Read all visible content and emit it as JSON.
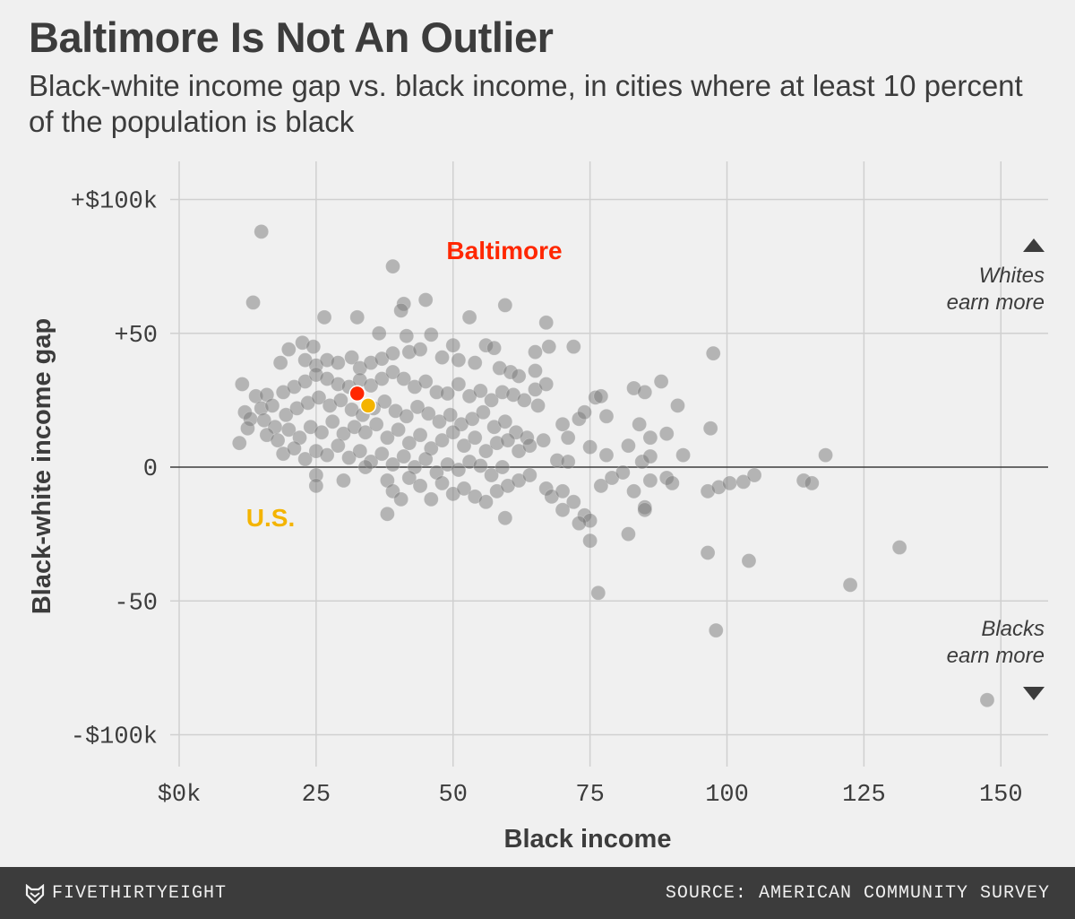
{
  "header": {
    "title": "Baltimore Is Not An Outlier",
    "subtitle": "Black-white income gap vs. black income, in cities where at least 10 percent of the population is black"
  },
  "footer": {
    "brand": "FIVETHIRTYEIGHT",
    "brand_icon": "fivethirtyeight-fox-icon",
    "source": "SOURCE: AMERICAN COMMUNITY SURVEY"
  },
  "colors": {
    "background": "#f0f0f0",
    "point": "#777777",
    "baltimore": "#ff2700",
    "us": "#f4b400",
    "text": "#3c3c3c",
    "grid": "#d0d0d0"
  },
  "chart_data": {
    "type": "scatter",
    "title": "Baltimore Is Not An Outlier",
    "subtitle": "Black-white income gap vs. black income, in cities where at least 10 percent of the population is black",
    "xlabel": "Black income",
    "ylabel": "Black-white income gap",
    "xlim": [
      0,
      160
    ],
    "ylim": [
      -110,
      115
    ],
    "x_ticks": [
      0,
      25,
      50,
      75,
      100,
      125,
      150
    ],
    "x_tick_labels": [
      "$0k",
      "25",
      "50",
      "75",
      "100",
      "125",
      "150"
    ],
    "y_ticks": [
      100,
      50,
      0,
      -50,
      -100
    ],
    "y_tick_labels": [
      "+$100k",
      "+50",
      "0",
      "-50",
      "-$100k"
    ],
    "grid": true,
    "annotations": {
      "baltimore_label": "Baltimore",
      "us_label": "U.S.",
      "whites_label": "Whites\nearn more",
      "blacks_label": "Blacks\nearn more"
    },
    "highlights": [
      {
        "name": "Baltimore",
        "x": 32.5,
        "y": 27.5
      },
      {
        "name": "U.S.",
        "x": 34.5,
        "y": 23
      }
    ],
    "points": [
      [
        15,
        88
      ],
      [
        13.5,
        61.5
      ],
      [
        39,
        75
      ],
      [
        45,
        62.5
      ],
      [
        41,
        61
      ],
      [
        40.5,
        58.5
      ],
      [
        26.5,
        56
      ],
      [
        32.5,
        56
      ],
      [
        53,
        56
      ],
      [
        59.5,
        60.5
      ],
      [
        67,
        54
      ],
      [
        36.5,
        50
      ],
      [
        41.5,
        49
      ],
      [
        46,
        49.5
      ],
      [
        50,
        45.5
      ],
      [
        56,
        45.5
      ],
      [
        57.5,
        44.5
      ],
      [
        65,
        43
      ],
      [
        67.5,
        45
      ],
      [
        72,
        45
      ],
      [
        97.5,
        42.5
      ],
      [
        20,
        44
      ],
      [
        22.5,
        46.5
      ],
      [
        24.5,
        45
      ],
      [
        18.5,
        39
      ],
      [
        23,
        40
      ],
      [
        25,
        38
      ],
      [
        27,
        40
      ],
      [
        29,
        39
      ],
      [
        31.5,
        41
      ],
      [
        33,
        37
      ],
      [
        35,
        39
      ],
      [
        37,
        40.5
      ],
      [
        39,
        42.5
      ],
      [
        42,
        43
      ],
      [
        44,
        44
      ],
      [
        48,
        41
      ],
      [
        51,
        40
      ],
      [
        54,
        39
      ],
      [
        58.5,
        37
      ],
      [
        60.5,
        35.5
      ],
      [
        65,
        36
      ],
      [
        62,
        34
      ],
      [
        11.5,
        31
      ],
      [
        14,
        26.5
      ],
      [
        16,
        27
      ],
      [
        12,
        20.5
      ],
      [
        13,
        18
      ],
      [
        11,
        9
      ],
      [
        12.5,
        14.5
      ],
      [
        15,
        22
      ],
      [
        17,
        23
      ],
      [
        19,
        28
      ],
      [
        21,
        30
      ],
      [
        23,
        32
      ],
      [
        25,
        34.5
      ],
      [
        27,
        33
      ],
      [
        29,
        31
      ],
      [
        31,
        30
      ],
      [
        33,
        32.5
      ],
      [
        35,
        30.5
      ],
      [
        37,
        33
      ],
      [
        39,
        35.5
      ],
      [
        41,
        33
      ],
      [
        43,
        30
      ],
      [
        45,
        32
      ],
      [
        47,
        28
      ],
      [
        49,
        27.5
      ],
      [
        51,
        31
      ],
      [
        53,
        26.5
      ],
      [
        55,
        28.5
      ],
      [
        57,
        25
      ],
      [
        59,
        28
      ],
      [
        61,
        27
      ],
      [
        63,
        25
      ],
      [
        65,
        29
      ],
      [
        67,
        31
      ],
      [
        76,
        26
      ],
      [
        77,
        26.5
      ],
      [
        83,
        29.5
      ],
      [
        85,
        28
      ],
      [
        88,
        32
      ],
      [
        91,
        23
      ],
      [
        97,
        14.5
      ],
      [
        15.5,
        17.5
      ],
      [
        17.5,
        15
      ],
      [
        19.5,
        19.5
      ],
      [
        21.5,
        22
      ],
      [
        23.5,
        24
      ],
      [
        25.5,
        26
      ],
      [
        27.5,
        23
      ],
      [
        29.5,
        25
      ],
      [
        31.5,
        21.5
      ],
      [
        33.5,
        19.5
      ],
      [
        35.5,
        22
      ],
      [
        37.5,
        24.5
      ],
      [
        39.5,
        21
      ],
      [
        41.5,
        19
      ],
      [
        43.5,
        22.5
      ],
      [
        45.5,
        20
      ],
      [
        47.5,
        17
      ],
      [
        49.5,
        19.5
      ],
      [
        51.5,
        16
      ],
      [
        53.5,
        18
      ],
      [
        55.5,
        20.5
      ],
      [
        57.5,
        15
      ],
      [
        59.5,
        17
      ],
      [
        61.5,
        13
      ],
      [
        63.5,
        11
      ],
      [
        65.5,
        23
      ],
      [
        66.5,
        10
      ],
      [
        70,
        16
      ],
      [
        71,
        11
      ],
      [
        73,
        18
      ],
      [
        74,
        20.5
      ],
      [
        78,
        19
      ],
      [
        84,
        16
      ],
      [
        86,
        11
      ],
      [
        89,
        12.5
      ],
      [
        92,
        4.5
      ],
      [
        118,
        4.5
      ],
      [
        16,
        12
      ],
      [
        18,
        10
      ],
      [
        20,
        14
      ],
      [
        22,
        11
      ],
      [
        24,
        15
      ],
      [
        26,
        13
      ],
      [
        28,
        17
      ],
      [
        30,
        12.5
      ],
      [
        32,
        15
      ],
      [
        34,
        13
      ],
      [
        36,
        16
      ],
      [
        38,
        11
      ],
      [
        40,
        14
      ],
      [
        42,
        9
      ],
      [
        44,
        12
      ],
      [
        46,
        7
      ],
      [
        48,
        10
      ],
      [
        50,
        13
      ],
      [
        52,
        8
      ],
      [
        54,
        11
      ],
      [
        56,
        6
      ],
      [
        58,
        9
      ],
      [
        60,
        10
      ],
      [
        62,
        6
      ],
      [
        64,
        8
      ],
      [
        69,
        2.5
      ],
      [
        71,
        2
      ],
      [
        75,
        7.5
      ],
      [
        78,
        4.5
      ],
      [
        82,
        8
      ],
      [
        84.5,
        2
      ],
      [
        86,
        4
      ],
      [
        19,
        5
      ],
      [
        21,
        7
      ],
      [
        23,
        3
      ],
      [
        25,
        6
      ],
      [
        27,
        4.5
      ],
      [
        29,
        8
      ],
      [
        31,
        3.5
      ],
      [
        33,
        6
      ],
      [
        35,
        2
      ],
      [
        37,
        5
      ],
      [
        39,
        1
      ],
      [
        41,
        4
      ],
      [
        43,
        0
      ],
      [
        45,
        3
      ],
      [
        47,
        -2
      ],
      [
        49,
        1
      ],
      [
        51,
        -1
      ],
      [
        53,
        2
      ],
      [
        55,
        0.5
      ],
      [
        57,
        -3
      ],
      [
        59,
        0
      ],
      [
        34,
        0
      ],
      [
        25,
        -3
      ],
      [
        25,
        -7
      ],
      [
        30,
        -5
      ],
      [
        38,
        -5
      ],
      [
        39,
        -9
      ],
      [
        42,
        -4
      ],
      [
        44,
        -7
      ],
      [
        46,
        -12
      ],
      [
        48,
        -6
      ],
      [
        50,
        -10
      ],
      [
        52,
        -8
      ],
      [
        54,
        -11
      ],
      [
        56,
        -13
      ],
      [
        58,
        -9
      ],
      [
        60,
        -7
      ],
      [
        62,
        -5
      ],
      [
        64,
        -3
      ],
      [
        67,
        -8
      ],
      [
        68,
        -11
      ],
      [
        70,
        -9
      ],
      [
        72,
        -13
      ],
      [
        74,
        -18
      ],
      [
        75,
        -20
      ],
      [
        77,
        -7
      ],
      [
        79,
        -4
      ],
      [
        81,
        -2
      ],
      [
        83,
        -9
      ],
      [
        85,
        -15
      ],
      [
        85,
        -16
      ],
      [
        86,
        -5
      ],
      [
        89,
        -4
      ],
      [
        90,
        -6
      ],
      [
        96.5,
        -9
      ],
      [
        98.5,
        -7.5
      ],
      [
        100.5,
        -6
      ],
      [
        103,
        -5.5
      ],
      [
        105,
        -3
      ],
      [
        114,
        -5
      ],
      [
        115.5,
        -6
      ],
      [
        38,
        -17.5
      ],
      [
        40.5,
        -12
      ],
      [
        59.5,
        -19
      ],
      [
        70,
        -16
      ],
      [
        73,
        -21
      ],
      [
        75,
        -27.5
      ],
      [
        82,
        -25
      ],
      [
        96.5,
        -32
      ],
      [
        104,
        -35
      ],
      [
        131.5,
        -30
      ],
      [
        76.5,
        -47
      ],
      [
        122.5,
        -44
      ],
      [
        98,
        -61
      ],
      [
        147.5,
        -87
      ]
    ]
  }
}
